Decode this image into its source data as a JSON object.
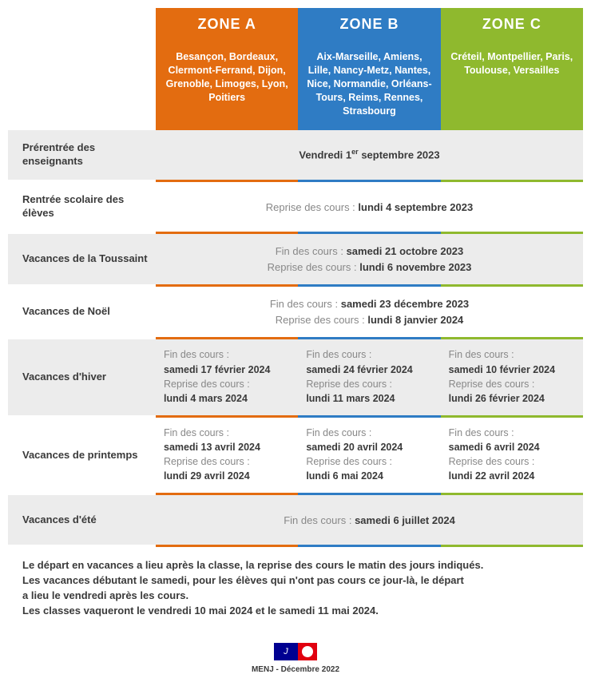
{
  "colors": {
    "zoneA": "#e36c10",
    "zoneB": "#2f7cc4",
    "zoneC": "#8fb92e",
    "rowAlt": "#ececec",
    "rowPlain": "#ffffff",
    "grayText": "#888888",
    "text": "#3a3a3a"
  },
  "zones": {
    "a": {
      "title": "ZONE A",
      "cities": "Besançon, Bordeaux, Clermont-Ferrand, Dijon, Grenoble, Limoges, Lyon, Poitiers"
    },
    "b": {
      "title": "ZONE B",
      "cities": "Aix-Marseille, Amiens, Lille, Nancy-Metz, Nantes, Nice, Normandie, Orléans-Tours, Reims, Rennes, Strasbourg"
    },
    "c": {
      "title": "ZONE C",
      "cities": "Créteil, Montpellier, Paris, Toulouse, Versailles"
    }
  },
  "rows": {
    "prerentree": {
      "label": "Prérentrée des enseignants",
      "merged_prefix": "Vendredi 1",
      "merged_sup": "er",
      "merged_suffix": " septembre 2023"
    },
    "rentree": {
      "label": "Rentrée scolaire des élèves",
      "merged_gray": "Reprise des cours : ",
      "merged_bold": "lundi 4 septembre 2023"
    },
    "toussaint": {
      "label": "Vacances de la Toussaint",
      "line1_gray": "Fin des cours : ",
      "line1_bold": "samedi 21 octobre 2023",
      "line2_gray": "Reprise des cours : ",
      "line2_bold": "lundi 6 novembre 2023"
    },
    "noel": {
      "label": "Vacances de Noël",
      "line1_gray": "Fin des cours : ",
      "line1_bold": "samedi 23 décembre 2023",
      "line2_gray": "Reprise des cours : ",
      "line2_bold": "lundi 8 janvier 2024"
    },
    "hiver": {
      "label": "Vacances d'hiver",
      "a": {
        "fin_lbl": "Fin des cours :",
        "fin_val": "samedi 17 février 2024",
        "rep_lbl": "Reprise des cours :",
        "rep_val": "lundi 4 mars 2024"
      },
      "b": {
        "fin_lbl": "Fin des cours :",
        "fin_val": "samedi 24 février 2024",
        "rep_lbl": "Reprise des cours :",
        "rep_val": "lundi 11 mars 2024"
      },
      "c": {
        "fin_lbl": "Fin des cours :",
        "fin_val": "samedi 10 février 2024",
        "rep_lbl": "Reprise des cours :",
        "rep_val": "lundi 26 février 2024"
      }
    },
    "printemps": {
      "label": "Vacances de printemps",
      "a": {
        "fin_lbl": "Fin des cours :",
        "fin_val": "samedi 13 avril 2024",
        "rep_lbl": "Reprise des cours :",
        "rep_val": "lundi 29 avril 2024"
      },
      "b": {
        "fin_lbl": "Fin des cours :",
        "fin_val": "samedi 20 avril 2024",
        "rep_lbl": "Reprise des cours :",
        "rep_val": "lundi 6 mai 2024"
      },
      "c": {
        "fin_lbl": "Fin des cours :",
        "fin_val": "samedi 6 avril 2024",
        "rep_lbl": "Reprise des cours :",
        "rep_val": "lundi 22 avril 2024"
      }
    },
    "ete": {
      "label": "Vacances d'été",
      "merged_gray": "Fin des cours : ",
      "merged_bold": "samedi 6 juillet 2024"
    }
  },
  "footnote": {
    "l1": "Le départ en vacances a lieu après la classe, la reprise des cours le matin des jours indiqués.",
    "l2": "Les vacances débutant le samedi, pour les élèves qui n'ont pas cours ce jour-là, le départ",
    "l3": "a lieu le vendredi après les cours.",
    "l4": "Les classes vaqueront le vendredi 10 mai 2024 et le samedi 11 mai 2024."
  },
  "source": "MENJ - Décembre 2022"
}
